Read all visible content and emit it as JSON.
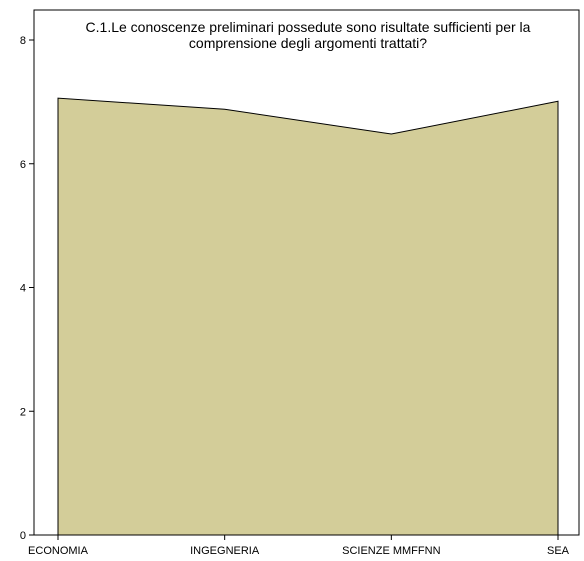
{
  "chart_data": {
    "type": "area",
    "title_lines": [
      "C.1.Le conoscenze preliminari possedute sono risultate sufficienti per la",
      "comprensione degli argomenti trattati?"
    ],
    "categories": [
      "ECONOMIA",
      "INGEGNERIA",
      "SCIENZE MMFFNN",
      "SEA"
    ],
    "values": [
      7.06,
      6.88,
      6.48,
      7.01
    ],
    "yticks": [
      0,
      2,
      4,
      6,
      8
    ],
    "ylim": [
      0,
      8
    ],
    "xlabel": "",
    "ylabel": "",
    "grid": false,
    "legend": "none",
    "colors": {
      "fill": "#d3cd99",
      "stroke": "#000000"
    }
  }
}
